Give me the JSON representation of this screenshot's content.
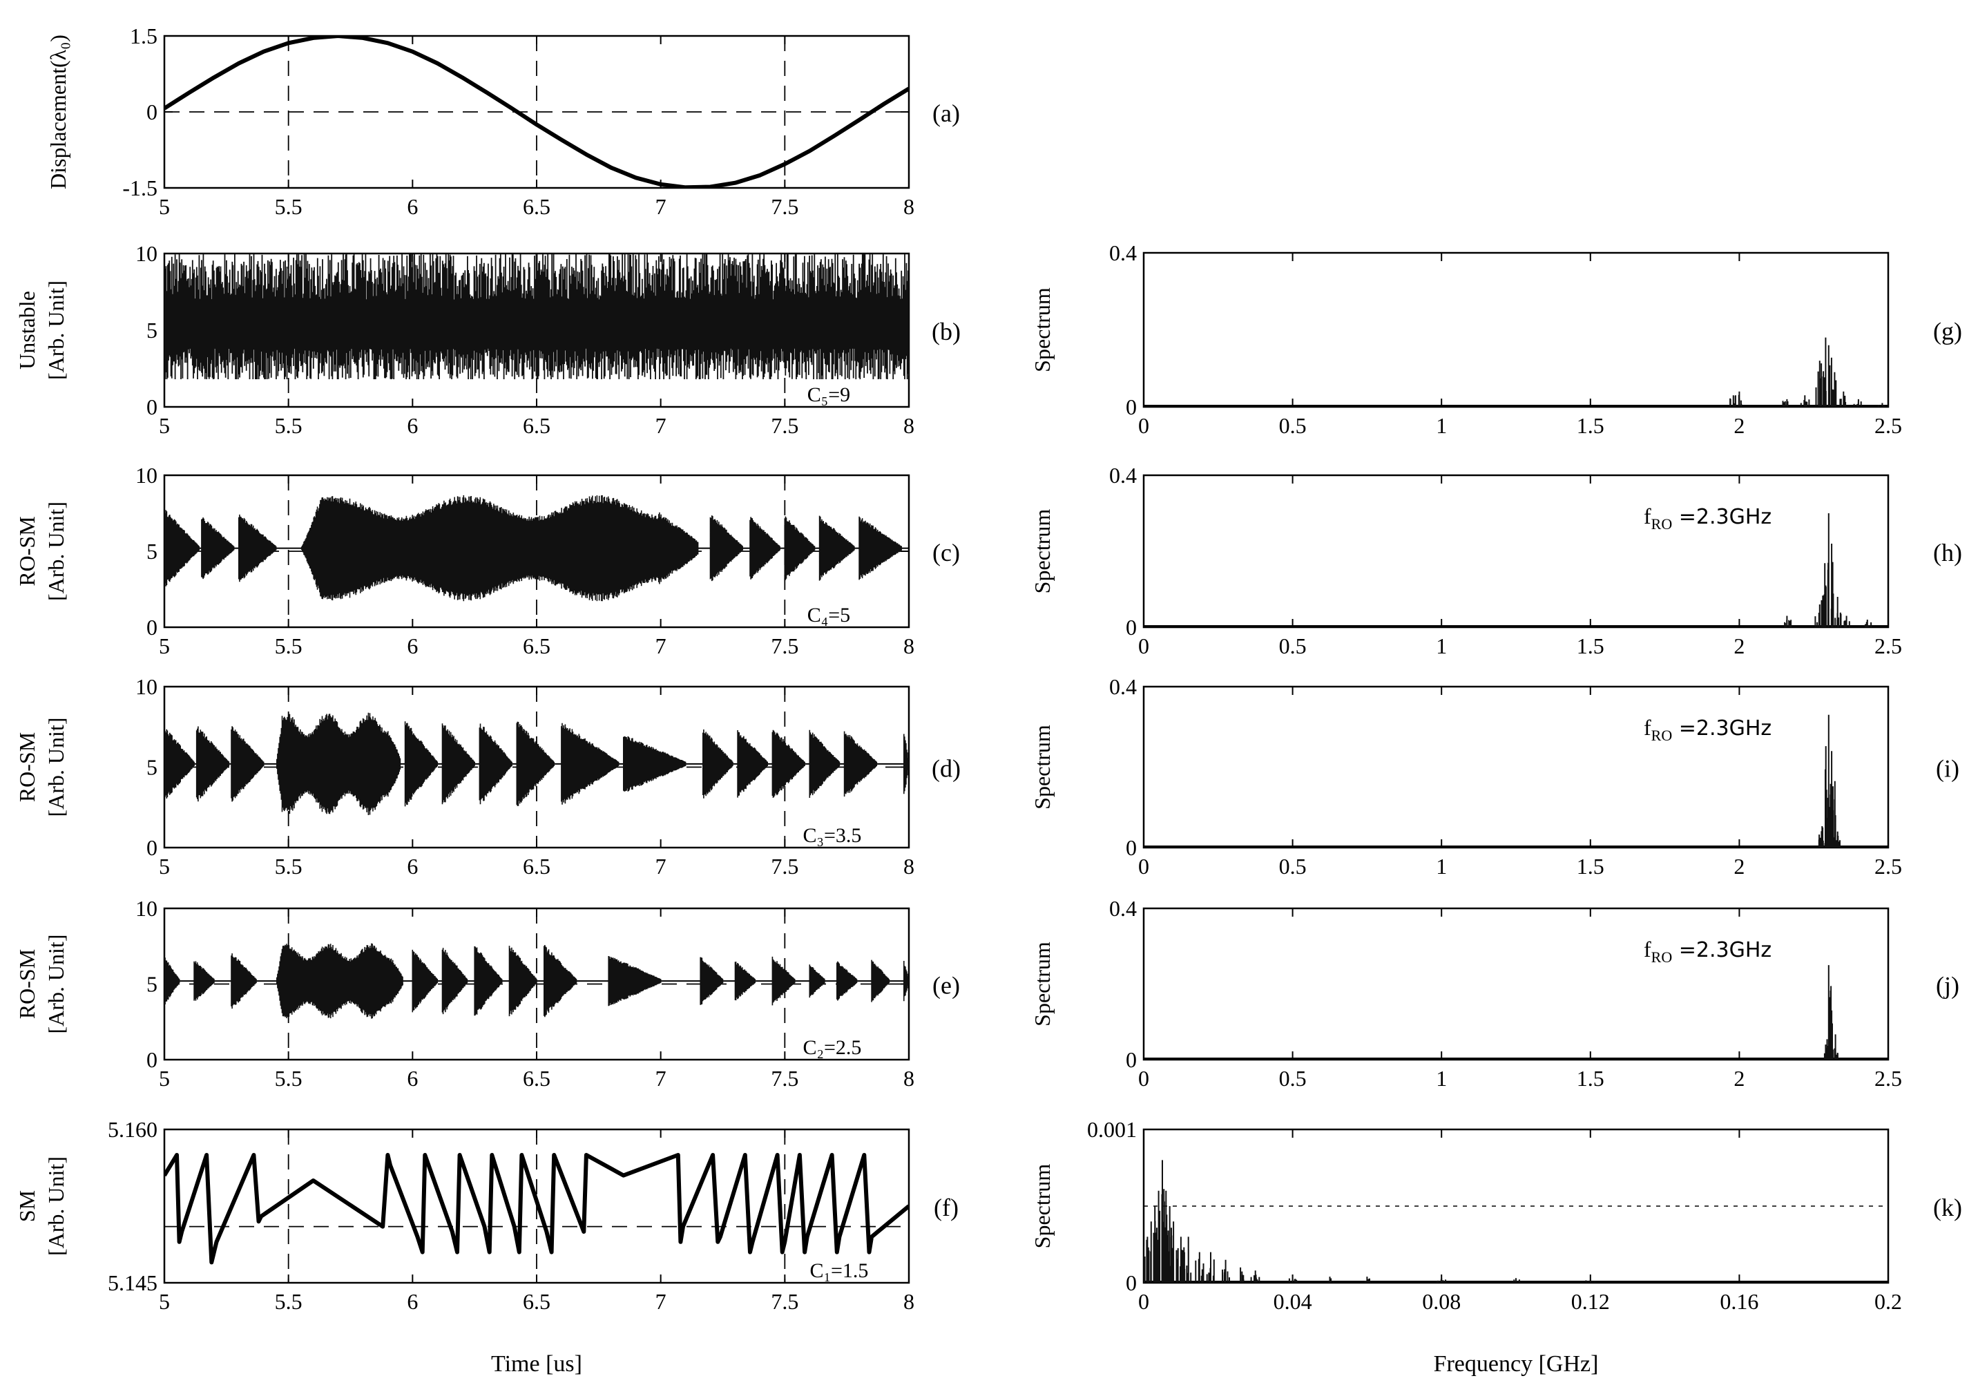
{
  "chart_data": [
    {
      "id": "a",
      "type": "line",
      "panel_label": "(a)",
      "ylabel": "Displacement(λ₀)",
      "xlabel": "",
      "xlim": [
        5,
        8
      ],
      "ylim": [
        -1.5,
        1.5
      ],
      "xticks": [
        "5",
        "5.5",
        "6",
        "6.5",
        "7",
        "7.5",
        "8"
      ],
      "yticks": [
        "1.5",
        "0",
        "-1.5"
      ],
      "grid": "dashed vertical at 5.5, 6.5, 7.5; dashed horizontal at 0",
      "series": [
        {
          "x": [
            5,
            5.1,
            5.2,
            5.3,
            5.4,
            5.5,
            5.6,
            5.7,
            5.8,
            5.9,
            6,
            6.1,
            6.2,
            6.3,
            6.4,
            6.5,
            6.6,
            6.7,
            6.8,
            6.9,
            7,
            7.1,
            7.2,
            7.3,
            7.4,
            7.5,
            7.6,
            7.7,
            7.8,
            7.9,
            8
          ],
          "y": [
            0.07,
            0.38,
            0.68,
            0.96,
            1.19,
            1.36,
            1.46,
            1.5,
            1.46,
            1.36,
            1.19,
            0.96,
            0.68,
            0.38,
            0.07,
            -0.25,
            -0.55,
            -0.84,
            -1.1,
            -1.3,
            -1.43,
            -1.49,
            -1.48,
            -1.4,
            -1.25,
            -1.03,
            -0.77,
            -0.47,
            -0.16,
            0.16,
            0.46
          ]
        }
      ]
    },
    {
      "id": "b",
      "type": "line",
      "panel_label": "(b)",
      "ylabel": [
        "Unstable",
        "[Arb. Unit]"
      ],
      "annotation": "C₅=9",
      "xlim": [
        5,
        8
      ],
      "ylim": [
        0,
        10
      ],
      "xticks": [
        "5",
        "5.5",
        "6",
        "6.5",
        "7",
        "7.5",
        "8"
      ],
      "yticks": [
        "10",
        "5",
        "0"
      ],
      "signal": "chaotic dense oscillation",
      "envelope_low": [
        2.5
      ],
      "envelope_high": [
        10
      ],
      "mean": 5
    },
    {
      "id": "c",
      "type": "line",
      "panel_label": "(c)",
      "ylabel": [
        "RO-SM",
        "[Arb. Unit]"
      ],
      "annotation": "C₄=5",
      "xlim": [
        5,
        8
      ],
      "ylim": [
        0,
        10
      ],
      "xticks": [
        "5",
        "5.5",
        "6",
        "6.5",
        "7",
        "7.5",
        "8"
      ],
      "yticks": [
        "10",
        "5",
        "0"
      ],
      "bursts": [
        [
          5.0,
          5.14,
          2.5
        ],
        [
          5.15,
          5.28,
          2.0
        ],
        [
          5.3,
          5.45,
          2.2
        ],
        [
          5.55,
          7.15,
          3.5
        ],
        [
          7.2,
          7.33,
          2.2
        ],
        [
          7.36,
          7.48,
          2.0
        ],
        [
          7.5,
          7.62,
          2.0
        ],
        [
          7.64,
          7.78,
          2.0
        ],
        [
          7.8,
          7.97,
          2.0
        ]
      ],
      "mean": 5.2
    },
    {
      "id": "d",
      "type": "line",
      "panel_label": "(d)",
      "ylabel": [
        "RO-SM",
        "[Arb. Unit]"
      ],
      "annotation": "C₃=3.5",
      "xlim": [
        5,
        8
      ],
      "ylim": [
        0,
        10
      ],
      "xticks": [
        "5",
        "5.5",
        "6",
        "6.5",
        "7",
        "7.5",
        "8"
      ],
      "yticks": [
        "10",
        "5",
        "0"
      ],
      "bursts": [
        [
          5.0,
          5.12,
          2.2
        ],
        [
          5.13,
          5.26,
          2.3
        ],
        [
          5.27,
          5.4,
          2.3
        ],
        [
          5.45,
          5.95,
          3.2
        ],
        [
          5.97,
          6.1,
          2.6
        ],
        [
          6.12,
          6.25,
          2.5
        ],
        [
          6.27,
          6.4,
          2.5
        ],
        [
          6.42,
          6.57,
          2.6
        ],
        [
          6.6,
          6.83,
          2.5
        ],
        [
          6.85,
          7.1,
          1.7
        ],
        [
          7.17,
          7.29,
          2.1
        ],
        [
          7.31,
          7.43,
          2.0
        ],
        [
          7.45,
          7.58,
          2.1
        ],
        [
          7.6,
          7.72,
          2.0
        ],
        [
          7.74,
          7.87,
          2.0
        ],
        [
          7.98,
          8.0,
          2.0
        ]
      ],
      "mean": 5.2
    },
    {
      "id": "e",
      "type": "line",
      "panel_label": "(e)",
      "ylabel": [
        "RO-SM",
        "[Arb. Unit]"
      ],
      "annotation": "C₂=2.5",
      "xlim": [
        5,
        8
      ],
      "ylim": [
        0,
        10
      ],
      "xticks": [
        "5",
        "5.5",
        "6",
        "6.5",
        "7",
        "7.5",
        "8"
      ],
      "yticks": [
        "10",
        "5",
        "0"
      ],
      "bursts": [
        [
          5.0,
          5.06,
          1.5
        ],
        [
          5.12,
          5.2,
          1.3
        ],
        [
          5.27,
          5.37,
          1.8
        ],
        [
          5.45,
          5.96,
          2.5
        ],
        [
          6.0,
          6.1,
          2.0
        ],
        [
          6.12,
          6.22,
          2.2
        ],
        [
          6.25,
          6.36,
          2.3
        ],
        [
          6.39,
          6.5,
          2.3
        ],
        [
          6.53,
          6.66,
          2.3
        ],
        [
          6.79,
          7.0,
          1.6
        ],
        [
          7.16,
          7.25,
          1.5
        ],
        [
          7.3,
          7.38,
          1.2
        ],
        [
          7.45,
          7.54,
          1.5
        ],
        [
          7.6,
          7.66,
          1.0
        ],
        [
          7.71,
          7.79,
          1.2
        ],
        [
          7.85,
          7.92,
          1.3
        ],
        [
          7.98,
          8.0,
          1.2
        ]
      ],
      "mean": 5.2
    },
    {
      "id": "f",
      "type": "line",
      "panel_label": "(f)",
      "ylabel": [
        "SM",
        "[Arb. Unit]"
      ],
      "annotation": "C₁=1.5",
      "xlim": [
        5,
        8
      ],
      "ylim": [
        5.145,
        5.16
      ],
      "xticks": [
        "5",
        "5.5",
        "6",
        "6.5",
        "7",
        "7.5",
        "8"
      ],
      "yticks": [
        "5.160",
        "5.145"
      ],
      "series": [
        {
          "x": [
            5.0,
            5.05,
            5.06,
            5.07,
            5.17,
            5.19,
            5.2,
            5.21,
            5.36,
            5.38,
            5.39,
            5.6,
            5.88,
            5.9,
            5.91,
            6.02,
            6.04,
            6.05,
            6.16,
            6.18,
            6.19,
            6.29,
            6.31,
            6.32,
            6.41,
            6.43,
            6.44,
            6.54,
            6.56,
            6.57,
            6.69,
            6.7,
            6.85,
            7.07,
            7.08,
            7.09,
            7.21,
            7.23,
            7.24,
            7.34,
            7.36,
            7.37,
            7.47,
            7.49,
            7.5,
            7.56,
            7.58,
            7.59,
            7.69,
            7.71,
            7.72,
            7.82,
            7.84,
            7.85,
            8.0
          ],
          "y": [
            5.1555,
            5.1575,
            5.149,
            5.15,
            5.1575,
            5.147,
            5.148,
            5.149,
            5.1575,
            5.151,
            5.1515,
            5.155,
            5.1505,
            5.1575,
            5.1565,
            5.1495,
            5.148,
            5.1575,
            5.15,
            5.148,
            5.1575,
            5.1505,
            5.148,
            5.1575,
            5.1505,
            5.148,
            5.1575,
            5.15,
            5.148,
            5.1575,
            5.15,
            5.1575,
            5.1555,
            5.1575,
            5.149,
            5.1505,
            5.1575,
            5.149,
            5.1495,
            5.1575,
            5.148,
            5.149,
            5.1575,
            5.148,
            5.149,
            5.1575,
            5.148,
            5.1495,
            5.1575,
            5.148,
            5.1495,
            5.1575,
            5.148,
            5.1495,
            5.1525
          ]
        }
      ]
    },
    {
      "id": "g",
      "type": "line",
      "panel_label": "(g)",
      "ylabel": "Spectrum",
      "xlim": [
        0,
        2.5
      ],
      "ylim": [
        0,
        0.4
      ],
      "xticks": [
        "0",
        "0.5",
        "1",
        "1.5",
        "2",
        "2.5"
      ],
      "yticks": [
        "0.4",
        "0"
      ],
      "peaks": [
        [
          1.98,
          0.03
        ],
        [
          2.0,
          0.04
        ],
        [
          2.16,
          0.02
        ],
        [
          2.22,
          0.03
        ],
        [
          2.27,
          0.12
        ],
        [
          2.29,
          0.18
        ],
        [
          2.3,
          0.16
        ],
        [
          2.32,
          0.09
        ],
        [
          2.35,
          0.04
        ],
        [
          2.4,
          0.02
        ],
        [
          2.48,
          0.01
        ]
      ]
    },
    {
      "id": "h",
      "type": "line",
      "panel_label": "(h)",
      "ylabel": "Spectrum",
      "xlim": [
        0,
        2.5
      ],
      "ylim": [
        0,
        0.4
      ],
      "xticks": [
        "0",
        "0.5",
        "1",
        "1.5",
        "2",
        "2.5"
      ],
      "yticks": [
        "0.4",
        "0"
      ],
      "annotation": {
        "prefix": "f",
        "sub": "RO",
        "text": " =2.3GHz"
      },
      "peaks": [
        [
          2.16,
          0.03
        ],
        [
          2.27,
          0.06
        ],
        [
          2.29,
          0.11
        ],
        [
          2.3,
          0.3
        ],
        [
          2.31,
          0.22
        ],
        [
          2.33,
          0.08
        ],
        [
          2.36,
          0.03
        ],
        [
          2.43,
          0.02
        ]
      ]
    },
    {
      "id": "i",
      "type": "line",
      "panel_label": "(i)",
      "ylabel": "Spectrum",
      "xlim": [
        0,
        2.5
      ],
      "ylim": [
        0,
        0.4
      ],
      "xticks": [
        "0",
        "0.5",
        "1",
        "1.5",
        "2",
        "2.5"
      ],
      "yticks": [
        "0.4",
        "0"
      ],
      "annotation": {
        "prefix": "f",
        "sub": "RO",
        "text": " =2.3GHz"
      },
      "peaks": [
        [
          2.28,
          0.05
        ],
        [
          2.29,
          0.1
        ],
        [
          2.3,
          0.33
        ],
        [
          2.31,
          0.24
        ],
        [
          2.32,
          0.12
        ],
        [
          2.33,
          0.04
        ]
      ]
    },
    {
      "id": "j",
      "type": "line",
      "panel_label": "(j)",
      "ylabel": "Spectrum",
      "xlim": [
        0,
        2.5
      ],
      "ylim": [
        0,
        0.4
      ],
      "xticks": [
        "0",
        "0.5",
        "1",
        "1.5",
        "2",
        "2.5"
      ],
      "yticks": [
        "0.4",
        "0"
      ],
      "annotation": {
        "prefix": "f",
        "sub": "RO",
        "text": " =2.3GHz"
      },
      "peaks": [
        [
          2.29,
          0.04
        ],
        [
          2.3,
          0.25
        ],
        [
          2.31,
          0.13
        ],
        [
          2.32,
          0.03
        ]
      ]
    },
    {
      "id": "k",
      "type": "line",
      "panel_label": "(k)",
      "ylabel": "Spectrum",
      "xlim": [
        0,
        0.2
      ],
      "ylim": [
        0,
        0.001
      ],
      "xticks": [
        "0",
        "0.04",
        "0.08",
        "0.12",
        "0.16",
        "0.2"
      ],
      "yticks": [
        "0.001",
        "0"
      ],
      "peaks": [
        [
          0.001,
          0.0003
        ],
        [
          0.002,
          0.0004
        ],
        [
          0.003,
          0.0005
        ],
        [
          0.004,
          0.0006
        ],
        [
          0.005,
          0.0008
        ],
        [
          0.006,
          0.0006
        ],
        [
          0.007,
          0.0005
        ],
        [
          0.008,
          0.0004
        ],
        [
          0.01,
          0.0003
        ],
        [
          0.012,
          0.0003
        ],
        [
          0.015,
          0.0002
        ],
        [
          0.018,
          0.0002
        ],
        [
          0.022,
          0.00015
        ],
        [
          0.026,
          0.0001
        ],
        [
          0.03,
          8e-05
        ],
        [
          0.04,
          5e-05
        ],
        [
          0.05,
          4e-05
        ],
        [
          0.06,
          4e-05
        ],
        [
          0.08,
          3e-05
        ],
        [
          0.1,
          3e-05
        ],
        [
          0.12,
          2e-05
        ]
      ]
    }
  ],
  "xlabel_left": "Time  [us]",
  "xlabel_right": "Frequency  [GHz]"
}
